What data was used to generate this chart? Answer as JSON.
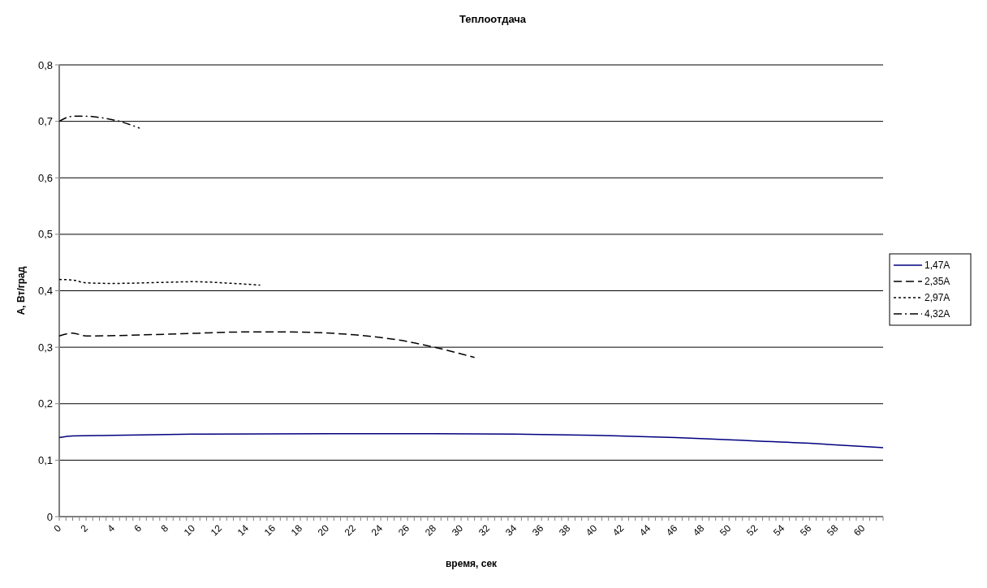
{
  "chart_data": {
    "type": "line",
    "title": "Теплоотдача",
    "xlabel": "время, сек",
    "ylabel": "А, Вт/град",
    "xlim": [
      0,
      61.5
    ],
    "ylim": [
      0,
      0.8
    ],
    "xticks": [
      0,
      {
        "value": 0.5,
        "label": null
      },
      {
        "value": 1,
        "label": null
      },
      {
        "value": 1.5,
        "label": null
      },
      2,
      {
        "value": 2.5,
        "label": null
      },
      {
        "value": 3,
        "label": null
      },
      {
        "value": 3.5,
        "label": null
      },
      4,
      {
        "value": 4.5,
        "label": null
      },
      {
        "value": 5,
        "label": null
      },
      {
        "value": 5.5,
        "label": null
      },
      6,
      {
        "value": 6.5,
        "label": null
      },
      {
        "value": 7,
        "label": null
      },
      {
        "value": 7.5,
        "label": null
      },
      8,
      {
        "value": 8.5,
        "label": null
      },
      {
        "value": 9,
        "label": null
      },
      {
        "value": 9.5,
        "label": null
      },
      10,
      {
        "value": 10.5,
        "label": null
      },
      {
        "value": 11,
        "label": null
      },
      {
        "value": 11.5,
        "label": null
      },
      12,
      {
        "value": 12.5,
        "label": null
      },
      {
        "value": 13,
        "label": null
      },
      {
        "value": 13.5,
        "label": null
      },
      14,
      {
        "value": 14.5,
        "label": null
      },
      {
        "value": 15,
        "label": null
      },
      {
        "value": 15.5,
        "label": null
      },
      16,
      {
        "value": 16.5,
        "label": null
      },
      {
        "value": 17,
        "label": null
      },
      {
        "value": 17.5,
        "label": null
      },
      18,
      {
        "value": 18.5,
        "label": null
      },
      {
        "value": 19,
        "label": null
      },
      {
        "value": 19.5,
        "label": null
      },
      20,
      {
        "value": 20.5,
        "label": null
      },
      {
        "value": 21,
        "label": null
      },
      {
        "value": 21.5,
        "label": null
      },
      22,
      {
        "value": 22.5,
        "label": null
      },
      {
        "value": 23,
        "label": null
      },
      {
        "value": 23.5,
        "label": null
      },
      24,
      {
        "value": 24.5,
        "label": null
      },
      {
        "value": 25,
        "label": null
      },
      {
        "value": 25.5,
        "label": null
      },
      26,
      {
        "value": 26.5,
        "label": null
      },
      {
        "value": 27,
        "label": null
      },
      {
        "value": 27.5,
        "label": null
      },
      28,
      {
        "value": 28.5,
        "label": null
      },
      {
        "value": 29,
        "label": null
      },
      {
        "value": 29.5,
        "label": null
      },
      30,
      {
        "value": 30.5,
        "label": null
      },
      {
        "value": 31,
        "label": null
      },
      {
        "value": 31.5,
        "label": null
      },
      32,
      {
        "value": 32.5,
        "label": null
      },
      {
        "value": 33,
        "label": null
      },
      {
        "value": 33.5,
        "label": null
      },
      34,
      {
        "value": 34.5,
        "label": null
      },
      {
        "value": 35,
        "label": null
      },
      {
        "value": 35.5,
        "label": null
      },
      36,
      {
        "value": 36.5,
        "label": null
      },
      {
        "value": 37,
        "label": null
      },
      {
        "value": 37.5,
        "label": null
      },
      38,
      {
        "value": 38.5,
        "label": null
      },
      {
        "value": 39,
        "label": null
      },
      {
        "value": 39.5,
        "label": null
      },
      40,
      {
        "value": 40.5,
        "label": null
      },
      {
        "value": 41,
        "label": null
      },
      {
        "value": 41.5,
        "label": null
      },
      42,
      {
        "value": 42.5,
        "label": null
      },
      {
        "value": 43,
        "label": null
      },
      {
        "value": 43.5,
        "label": null
      },
      44,
      {
        "value": 44.5,
        "label": null
      },
      {
        "value": 45,
        "label": null
      },
      {
        "value": 45.5,
        "label": null
      },
      46,
      {
        "value": 46.5,
        "label": null
      },
      {
        "value": 47,
        "label": null
      },
      {
        "value": 47.5,
        "label": null
      },
      48,
      {
        "value": 48.5,
        "label": null
      },
      {
        "value": 49,
        "label": null
      },
      {
        "value": 49.5,
        "label": null
      },
      50,
      {
        "value": 50.5,
        "label": null
      },
      {
        "value": 51,
        "label": null
      },
      {
        "value": 51.5,
        "label": null
      },
      52,
      {
        "value": 52.5,
        "label": null
      },
      {
        "value": 53,
        "label": null
      },
      {
        "value": 53.5,
        "label": null
      },
      54,
      {
        "value": 54.5,
        "label": null
      },
      {
        "value": 55,
        "label": null
      },
      {
        "value": 55.5,
        "label": null
      },
      56,
      {
        "value": 56.5,
        "label": null
      },
      {
        "value": 57,
        "label": null
      },
      {
        "value": 57.5,
        "label": null
      },
      58,
      {
        "value": 58.5,
        "label": null
      },
      {
        "value": 59,
        "label": null
      },
      {
        "value": 59.5,
        "label": null
      },
      60,
      {
        "value": 60.5,
        "label": null
      },
      {
        "value": 61,
        "label": null
      },
      {
        "value": 61.5,
        "label": null
      }
    ],
    "yticks": [
      0,
      {
        "value": 0.1,
        "label": "0,1"
      },
      {
        "value": 0.2,
        "label": "0,2"
      },
      {
        "value": 0.3,
        "label": "0,3"
      },
      {
        "value": 0.4,
        "label": "0,4"
      },
      {
        "value": 0.5,
        "label": "0,5"
      },
      {
        "value": 0.6,
        "label": "0,6"
      },
      {
        "value": 0.7,
        "label": "0,7"
      },
      {
        "value": 0.8,
        "label": "0,8"
      }
    ],
    "grid": "y",
    "legend": "right",
    "series": [
      {
        "name": "1,47A",
        "color": "#000080",
        "line_style": "solid",
        "x": [
          0,
          1,
          4,
          10,
          20,
          28,
          34,
          40,
          46,
          50,
          56,
          61.5
        ],
        "values": [
          0.14,
          0.143,
          0.144,
          0.146,
          0.147,
          0.147,
          0.146,
          0.144,
          0.14,
          0.136,
          0.13,
          0.122
        ]
      },
      {
        "name": "2,35A",
        "color": "#000000",
        "line_style": "dashed",
        "x": [
          0,
          1,
          2,
          8,
          14,
          17,
          22,
          26,
          28,
          31
        ],
        "values": [
          0.32,
          0.325,
          0.32,
          0.323,
          0.327,
          0.327,
          0.322,
          0.31,
          0.3,
          0.282
        ]
      },
      {
        "name": "2,97A",
        "color": "#000000",
        "line_style": "dotted",
        "x": [
          0,
          1,
          2,
          4,
          8,
          10,
          13,
          15
        ],
        "values": [
          0.42,
          0.419,
          0.414,
          0.413,
          0.415,
          0.416,
          0.413,
          0.41
        ]
      },
      {
        "name": "4,32A",
        "color": "#000000",
        "line_style": "dashdot",
        "x": [
          0,
          1,
          2,
          3.5,
          4.5,
          6
        ],
        "values": [
          0.7,
          0.709,
          0.709,
          0.705,
          0.7,
          0.688
        ]
      }
    ]
  }
}
